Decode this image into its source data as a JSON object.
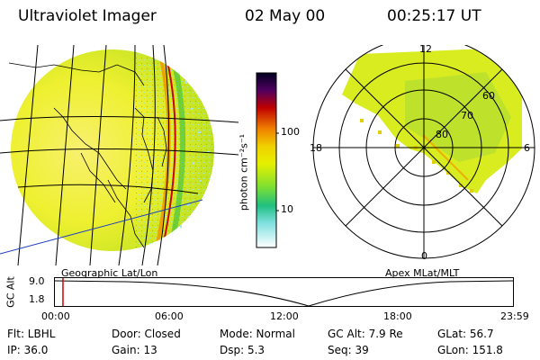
{
  "header": {
    "instrument": "Ultraviolet Imager",
    "date": "02 May 00",
    "time": "00:25:17 UT"
  },
  "colorbar": {
    "unit_label": "photon cm⁻²s⁻¹",
    "ticks": [
      "100",
      "10"
    ]
  },
  "polar": {
    "mlt_labels": [
      "12",
      "18",
      "6",
      "0"
    ],
    "lat_labels": [
      "60",
      "70",
      "80"
    ]
  },
  "panel_labels": {
    "left": "Geographic Lat/Lon",
    "right": "Apex MLat/MLT"
  },
  "timeline": {
    "ylabel": "GC Alt",
    "y_ticks": [
      "9.0",
      "1.8"
    ],
    "x_ticks": [
      "00:00",
      "06:00",
      "12:00",
      "18:00",
      "23:59"
    ],
    "current_fraction": 0.0176
  },
  "status": {
    "flt": "Flt: LBHL",
    "ip": "IP: 36.0",
    "door": "Door: Closed",
    "gain": "Gain: 13",
    "mode": "Mode: Normal",
    "dsp": "Dsp:    5.3",
    "gc_alt": "GC Alt: 7.9 Re",
    "seq": "Seq: 39",
    "glat": "GLat:    56.7",
    "glon": "GLon: 151.8"
  },
  "colors": {
    "image_base": "#e6f000",
    "accent_orange": "#f08000",
    "limb_red": "#d00000",
    "orbit_blue": "#2040c0",
    "marker_red": "#d00000"
  }
}
